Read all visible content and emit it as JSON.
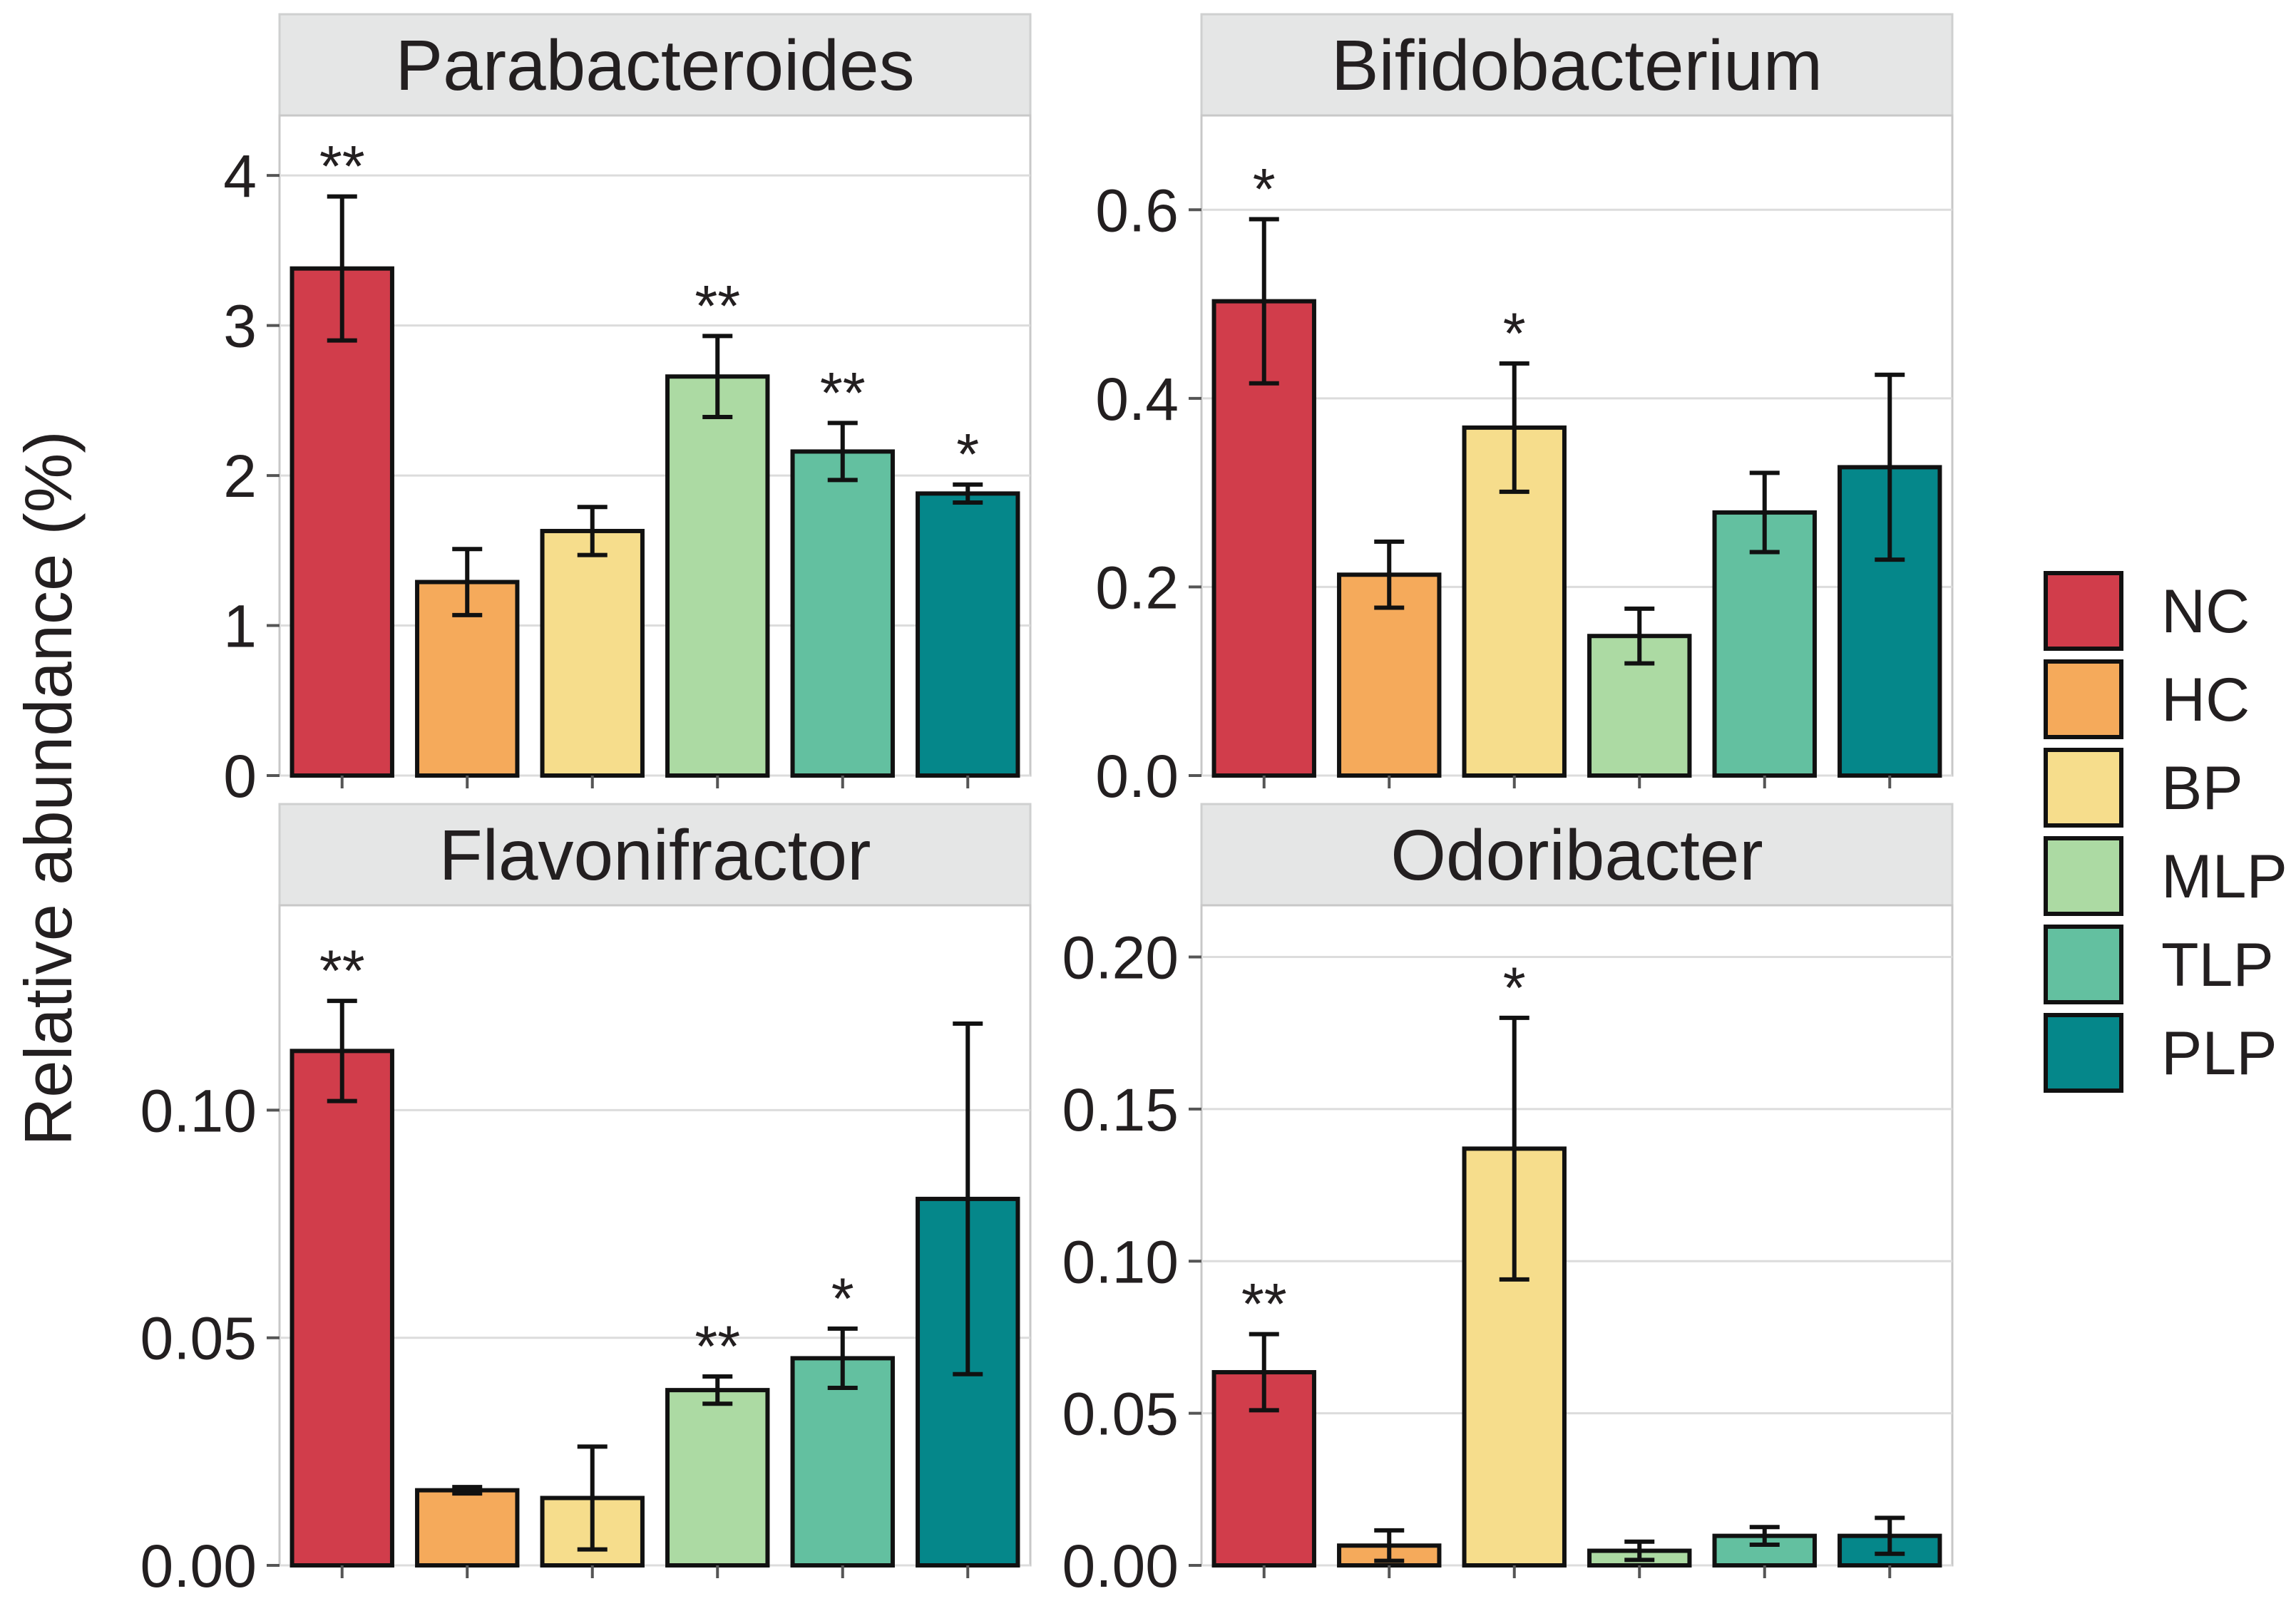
{
  "ylabel": "Relative abundance (%)",
  "legend": [
    {
      "label": "NC",
      "color": "#d13d4b"
    },
    {
      "label": "HC",
      "color": "#f5aa5b"
    },
    {
      "label": "BP",
      "color": "#f6dd8c"
    },
    {
      "label": "MLP",
      "color": "#acdaa3"
    },
    {
      "label": "TLP",
      "color": "#63c0a0"
    },
    {
      "label": "PLP",
      "color": "#05878a"
    }
  ],
  "chart_data": [
    {
      "type": "bar",
      "title": "Parabacteroides",
      "categories": [
        "NC",
        "HC",
        "BP",
        "MLP",
        "TLP",
        "PLP"
      ],
      "values": [
        3.38,
        1.29,
        1.63,
        2.66,
        2.16,
        1.88
      ],
      "error_low": [
        2.9,
        1.07,
        1.47,
        2.39,
        1.97,
        1.82
      ],
      "error_high": [
        3.86,
        1.51,
        1.79,
        2.93,
        2.35,
        1.94
      ],
      "significance": [
        "**",
        "",
        "",
        "**",
        "**",
        "*"
      ],
      "ylim": [
        0,
        4.4
      ],
      "yticks": [
        0,
        1,
        2,
        3,
        4
      ],
      "yticklabels": [
        "0",
        "1",
        "2",
        "3",
        "4"
      ]
    },
    {
      "type": "bar",
      "title": "Bifidobacterium",
      "categories": [
        "NC",
        "HC",
        "BP",
        "MLP",
        "TLP",
        "PLP"
      ],
      "values": [
        0.503,
        0.213,
        0.369,
        0.148,
        0.279,
        0.327
      ],
      "error_low": [
        0.416,
        0.178,
        0.301,
        0.119,
        0.237,
        0.229
      ],
      "error_high": [
        0.59,
        0.248,
        0.437,
        0.177,
        0.321,
        0.425
      ],
      "significance": [
        "*",
        "",
        "*",
        "",
        "",
        ""
      ],
      "ylim": [
        0,
        0.7
      ],
      "yticks": [
        0,
        0.2,
        0.4,
        0.6
      ],
      "yticklabels": [
        "0.0",
        "0.2",
        "0.4",
        "0.6"
      ]
    },
    {
      "type": "bar",
      "title": "Flavonifractor",
      "categories": [
        "NC",
        "HC",
        "BP",
        "MLP",
        "TLP",
        "PLP"
      ],
      "values": [
        0.113,
        0.0165,
        0.0148,
        0.0385,
        0.0455,
        0.0805
      ],
      "error_low": [
        0.102,
        0.0158,
        0.0035,
        0.0355,
        0.039,
        0.042
      ],
      "error_high": [
        0.124,
        0.0172,
        0.0261,
        0.0415,
        0.052,
        0.119
      ],
      "significance": [
        "**",
        "",
        "",
        "**",
        "*",
        ""
      ],
      "ylim": [
        0,
        0.145
      ],
      "yticks": [
        0,
        0.05,
        0.1
      ],
      "yticklabels": [
        "0.00",
        "0.05",
        "0.10"
      ]
    },
    {
      "type": "bar",
      "title": "Odoribacter",
      "categories": [
        "NC",
        "HC",
        "BP",
        "MLP",
        "TLP",
        "PLP"
      ],
      "values": [
        0.0635,
        0.0065,
        0.137,
        0.0048,
        0.0097,
        0.0097
      ],
      "error_low": [
        0.051,
        0.0015,
        0.094,
        0.0018,
        0.0068,
        0.0038
      ],
      "error_high": [
        0.076,
        0.0115,
        0.18,
        0.0078,
        0.0126,
        0.0156
      ],
      "significance": [
        "**",
        "",
        "*",
        "",
        "",
        ""
      ],
      "ylim": [
        0,
        0.217
      ],
      "yticks": [
        0,
        0.05,
        0.1,
        0.15,
        0.2
      ],
      "yticklabels": [
        "0.00",
        "0.05",
        "0.10",
        "0.15",
        "0.20"
      ]
    }
  ]
}
